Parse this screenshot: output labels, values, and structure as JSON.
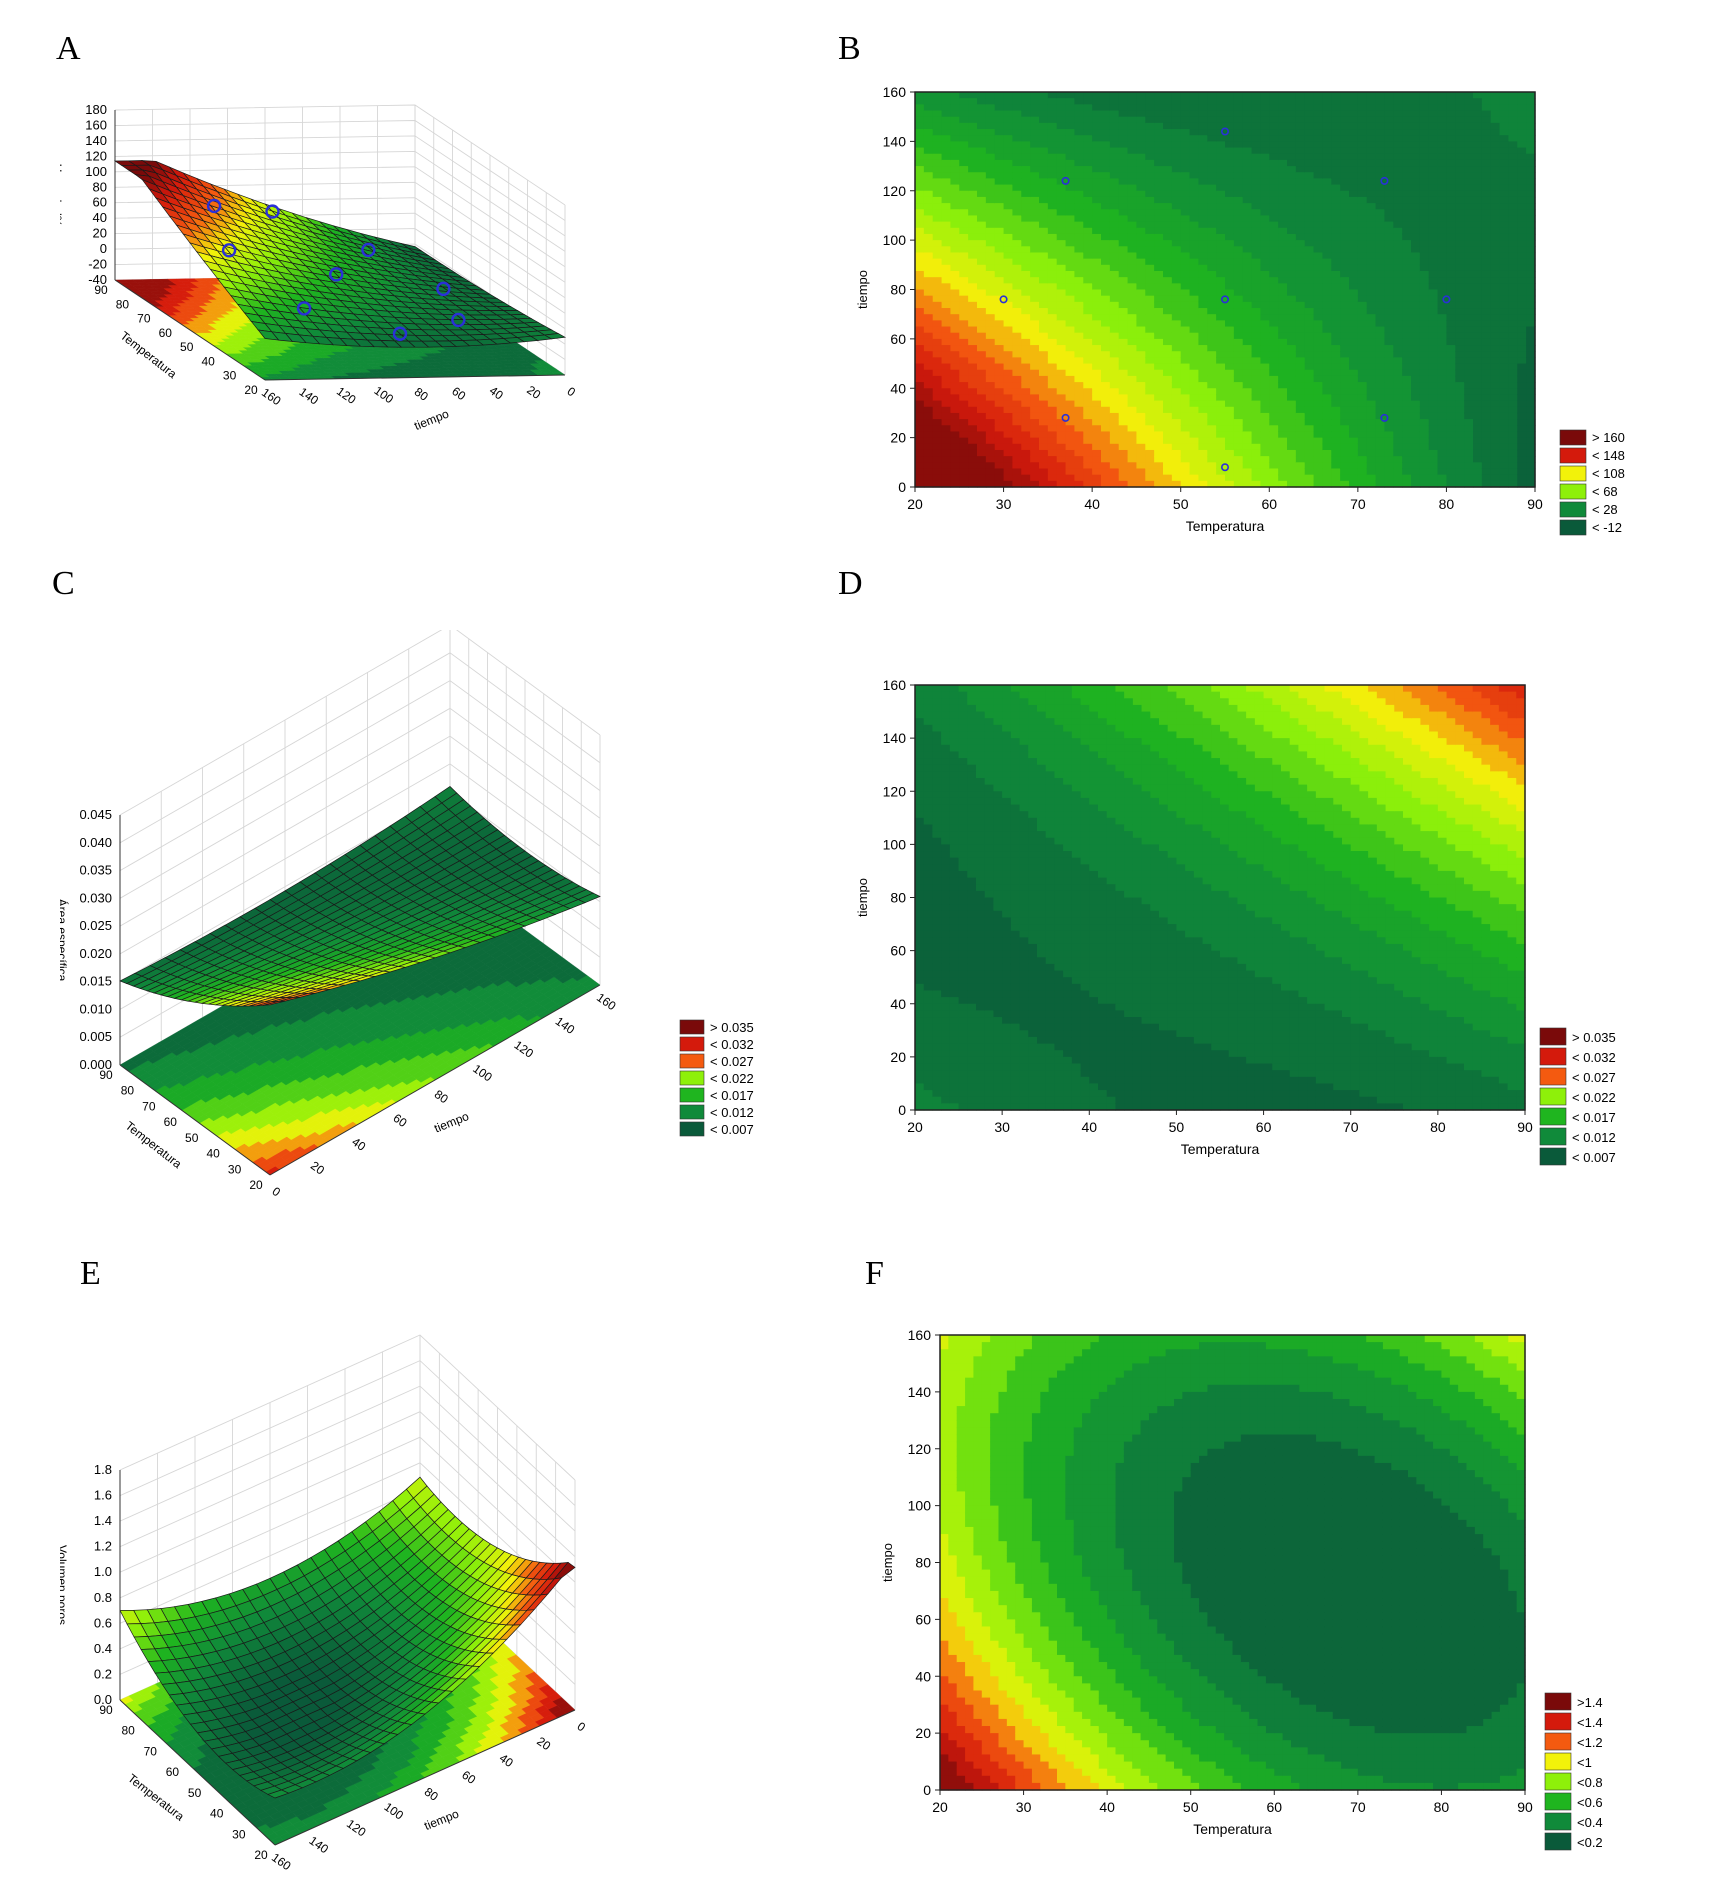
{
  "figure": {
    "panel_labels": [
      "A",
      "B",
      "C",
      "D",
      "E",
      "F"
    ]
  },
  "palette": {
    "dark_red": "#7a0a0a",
    "red": "#d41a0c",
    "orange": "#f45a10",
    "yellow": "#f2f20a",
    "lime": "#8ef00a",
    "green": "#1fb51f",
    "mid_green": "#108a3a",
    "dark_green": "#0a5a3a",
    "point_color": "#2a30d8"
  },
  "chart_data": [
    {
      "id": "A",
      "type": "surface3d",
      "zlabel": "Humedad%",
      "xlabel": "Temperatura",
      "ylabel": "tiempo",
      "z_ticks": [
        "180",
        "160",
        "140",
        "120",
        "100",
        "80",
        "60",
        "40",
        "20",
        "0",
        "-20",
        "-40"
      ],
      "x_ticks": [
        "90",
        "80",
        "70",
        "60",
        "50",
        "40",
        "30",
        "20"
      ],
      "y_ticks": [
        "160",
        "140",
        "120",
        "100",
        "80",
        "60",
        "40",
        "20",
        "0"
      ],
      "corner_values": {
        "t20_time0": 160,
        "t90_time0": 0,
        "t20_time160": 60,
        "t90_time160": 40
      },
      "points": [
        [
          30,
          76
        ],
        [
          37,
          124
        ],
        [
          37,
          28
        ],
        [
          55,
          144
        ],
        [
          55,
          76
        ],
        [
          55,
          8
        ],
        [
          73,
          124
        ],
        [
          73,
          28
        ],
        [
          80,
          76
        ]
      ]
    },
    {
      "id": "B",
      "type": "contour",
      "xlabel": "Temperatura",
      "ylabel": "tiempo",
      "xlim": [
        20,
        90
      ],
      "ylim": [
        0,
        160
      ],
      "x_ticks": [
        "20",
        "30",
        "40",
        "50",
        "60",
        "70",
        "80",
        "90"
      ],
      "y_ticks": [
        "0",
        "20",
        "40",
        "60",
        "80",
        "100",
        "120",
        "140",
        "160"
      ],
      "legend": [
        "> 160",
        "< 148",
        "< 108",
        "< 68",
        "< 28",
        "< -12"
      ],
      "points": [
        [
          30,
          76
        ],
        [
          37,
          124
        ],
        [
          37,
          28
        ],
        [
          55,
          144
        ],
        [
          55,
          76
        ],
        [
          55,
          8
        ],
        [
          73,
          124
        ],
        [
          73,
          28
        ],
        [
          80,
          76
        ]
      ]
    },
    {
      "id": "C",
      "type": "surface3d",
      "zlabel": "Área específica",
      "xlabel": "Temperatura",
      "ylabel": "tiempo",
      "z_ticks": [
        "0.045",
        "0.040",
        "0.035",
        "0.030",
        "0.025",
        "0.020",
        "0.015",
        "0.010",
        "0.005",
        "0.000"
      ],
      "x_ticks": [
        "90",
        "80",
        "70",
        "60",
        "50",
        "40",
        "30",
        "20"
      ],
      "y_ticks": [
        "0",
        "20",
        "40",
        "60",
        "80",
        "100",
        "120",
        "140",
        "160"
      ],
      "legend": [
        "> 0.035",
        "< 0.032",
        "< 0.027",
        "< 0.022",
        "< 0.017",
        "< 0.012",
        "< 0.007"
      ]
    },
    {
      "id": "D",
      "type": "contour",
      "xlabel": "Temperatura",
      "ylabel": "tiempo",
      "xlim": [
        20,
        90
      ],
      "ylim": [
        0,
        160
      ],
      "x_ticks": [
        "20",
        "30",
        "40",
        "50",
        "60",
        "70",
        "80",
        "90"
      ],
      "y_ticks": [
        "0",
        "20",
        "40",
        "60",
        "80",
        "100",
        "120",
        "140",
        "160"
      ],
      "legend": [
        "> 0.035",
        "< 0.032",
        "< 0.027",
        "< 0.022",
        "< 0.017",
        "< 0.012",
        "< 0.007"
      ]
    },
    {
      "id": "E",
      "type": "surface3d",
      "zlabel": "Volumen poros",
      "xlabel": "Temperatura",
      "ylabel": "tiempo",
      "z_ticks": [
        "1.8",
        "1.6",
        "1.4",
        "1.2",
        "1.0",
        "0.8",
        "0.6",
        "0.4",
        "0.2",
        "0.0"
      ],
      "x_ticks": [
        "90",
        "80",
        "70",
        "60",
        "50",
        "40",
        "30",
        "20"
      ],
      "y_ticks": [
        "160",
        "140",
        "120",
        "100",
        "80",
        "60",
        "40",
        "20",
        "0"
      ]
    },
    {
      "id": "F",
      "type": "contour",
      "xlabel": "Temperatura",
      "ylabel": "tiempo",
      "xlim": [
        20,
        90
      ],
      "ylim": [
        0,
        160
      ],
      "x_ticks": [
        "20",
        "30",
        "40",
        "50",
        "60",
        "70",
        "80",
        "90"
      ],
      "y_ticks": [
        "0",
        "20",
        "40",
        "60",
        "80",
        "100",
        "120",
        "140",
        "160"
      ],
      "legend": [
        ">1.4",
        "<1.4",
        "<1.2",
        "<1",
        "<0.8",
        "<0.6",
        "<0.4",
        "<0.2"
      ]
    }
  ]
}
